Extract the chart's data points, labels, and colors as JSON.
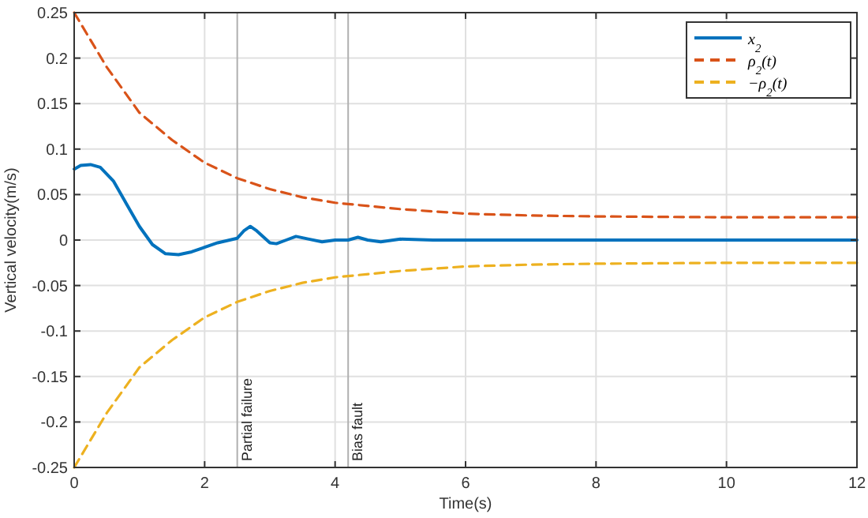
{
  "chart_data": {
    "type": "line",
    "xlabel": "Time(s)",
    "ylabel": "Vertical velocity(m/s)",
    "xlim": [
      0,
      12
    ],
    "xticks": [
      0,
      2,
      4,
      6,
      8,
      10,
      12
    ],
    "ylim": [
      -0.25,
      0.25
    ],
    "yticks": [
      -0.25,
      -0.2,
      -0.15,
      -0.1,
      -0.05,
      0,
      0.05,
      0.1,
      0.15,
      0.2,
      0.25
    ],
    "grid": true,
    "legend": "top right",
    "ref_lines": [
      {
        "axis": "x",
        "value": 2.5,
        "label": "Partial failure",
        "color": "#b0b0b0"
      },
      {
        "axis": "x",
        "value": 4.2,
        "label": "Bias fault",
        "color": "#b0b0b0"
      }
    ],
    "series": [
      {
        "name": "x$_{2}$",
        "color": "#0072bd",
        "line_style": "solid",
        "x": [
          0,
          0.1,
          0.25,
          0.4,
          0.6,
          0.8,
          1.0,
          1.2,
          1.4,
          1.6,
          1.8,
          2.0,
          2.2,
          2.5,
          2.6,
          2.7,
          2.8,
          3.0,
          3.1,
          3.25,
          3.4,
          3.6,
          3.8,
          4.0,
          4.2,
          4.35,
          4.5,
          4.7,
          5.0,
          5.5,
          6,
          12
        ],
        "values": [
          0.078,
          0.082,
          0.083,
          0.08,
          0.065,
          0.04,
          0.015,
          -0.005,
          -0.015,
          -0.016,
          -0.013,
          -0.008,
          -0.003,
          0.002,
          0.01,
          0.015,
          0.01,
          -0.003,
          -0.004,
          0,
          0.004,
          0.001,
          -0.002,
          0,
          0,
          0.003,
          0,
          -0.002,
          0.001,
          0,
          0,
          0
        ]
      },
      {
        "name": "ρ$_{2}$(t)",
        "color": "#d95319",
        "line_style": "dashed",
        "x": [
          0,
          0.5,
          1,
          1.5,
          2,
          2.5,
          3,
          3.5,
          4,
          5,
          6,
          7,
          8,
          10,
          12
        ],
        "values": [
          0.25,
          0.19,
          0.14,
          0.11,
          0.085,
          0.068,
          0.056,
          0.047,
          0.041,
          0.034,
          0.029,
          0.027,
          0.026,
          0.025,
          0.025
        ]
      },
      {
        "name": "−ρ$_{2}$(t)",
        "color": "#edb120",
        "line_style": "dashed",
        "x": [
          0,
          0.5,
          1,
          1.5,
          2,
          2.5,
          3,
          3.5,
          4,
          5,
          6,
          7,
          8,
          10,
          12
        ],
        "values": [
          -0.25,
          -0.19,
          -0.14,
          -0.11,
          -0.085,
          -0.068,
          -0.056,
          -0.047,
          -0.041,
          -0.034,
          -0.029,
          -0.027,
          -0.026,
          -0.025,
          -0.025
        ]
      }
    ]
  }
}
